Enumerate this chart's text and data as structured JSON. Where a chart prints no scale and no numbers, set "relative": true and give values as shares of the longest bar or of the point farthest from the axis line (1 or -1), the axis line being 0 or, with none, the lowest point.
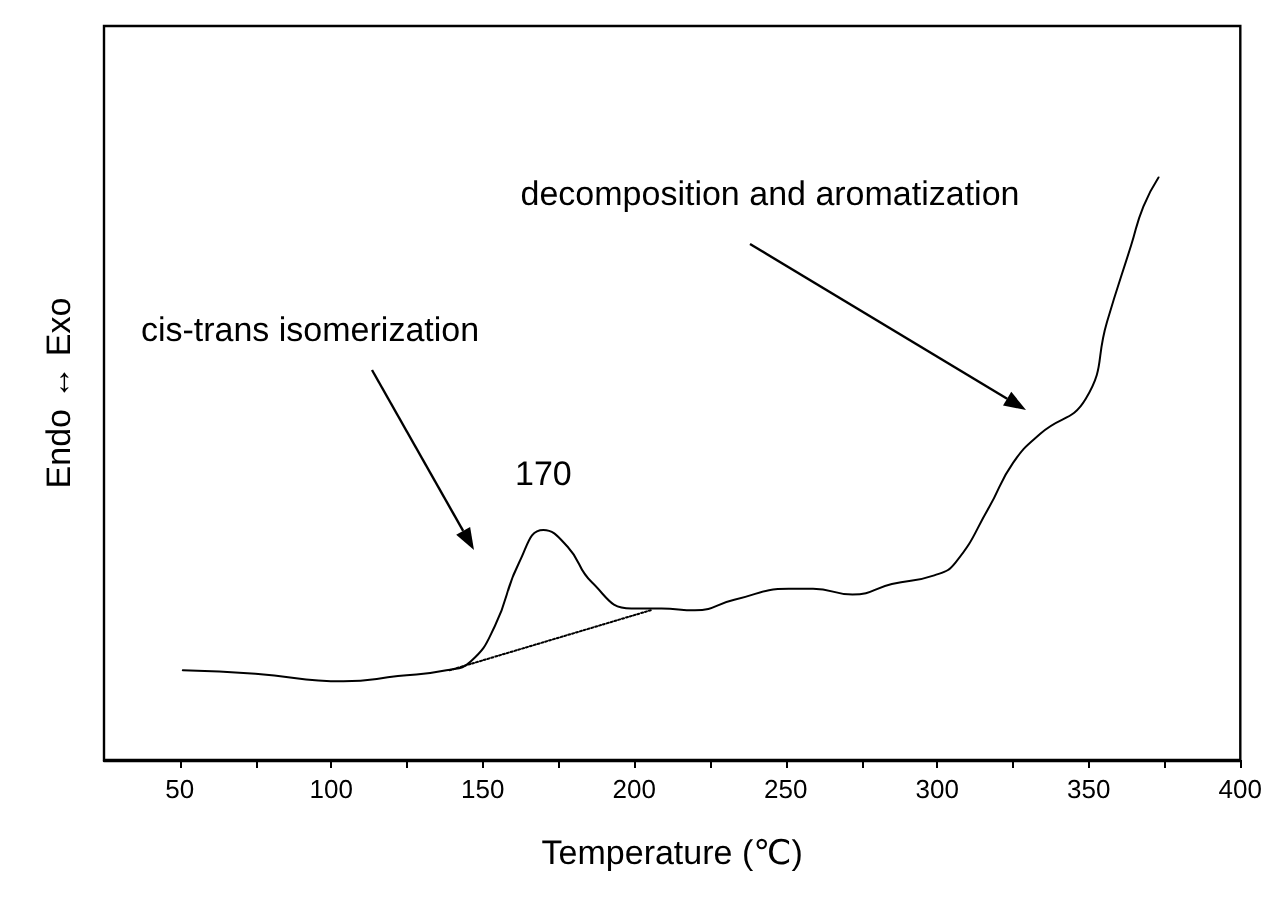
{
  "chart_data": {
    "type": "line",
    "relative": true,
    "xlabel": "Temperature (℃)",
    "ylabel": "Endo ↔ Exo",
    "xlim": [
      25,
      400
    ],
    "xticks": [
      50,
      {
        "value": 75,
        "label": null
      },
      100,
      {
        "value": 125,
        "label": null
      },
      150,
      {
        "value": 175,
        "label": null
      },
      200,
      {
        "value": 225,
        "label": null
      },
      250,
      {
        "value": 275,
        "label": null
      },
      300,
      {
        "value": 325,
        "label": null
      },
      350,
      {
        "value": 375,
        "label": null
      },
      400
    ],
    "grid": false,
    "marker": "none",
    "series": [
      {
        "color": "#000000",
        "line_style": "solid",
        "x": [
          51,
          75,
          104,
          122,
          138,
          146,
          154,
          162,
          170,
          178,
          186,
          199,
          209,
          220,
          233,
          251,
          259,
          272,
          285,
          299,
          306,
          317,
          325,
          334,
          349,
          356,
          364,
          368,
          373
        ],
        "values": [
          0.154,
          0.148,
          0.135,
          0.144,
          0.154,
          0.169,
          0.23,
          0.339,
          0.395,
          0.366,
          0.305,
          0.26,
          0.26,
          0.257,
          0.275,
          0.294,
          0.294,
          0.284,
          0.302,
          0.317,
          0.339,
          0.433,
          0.51,
          0.56,
          0.62,
          0.752,
          0.884,
          0.95,
          1
        ]
      },
      {
        "color": "#000000",
        "line_style": "dotted",
        "x": [
          139,
          206
        ],
        "values": [
          0.154,
          0.258
        ]
      }
    ],
    "annotations": [
      {
        "text": "170",
        "x": 170,
        "y": 0.395
      },
      "cis-trans isomerization",
      "decomposition and aromatization"
    ]
  }
}
